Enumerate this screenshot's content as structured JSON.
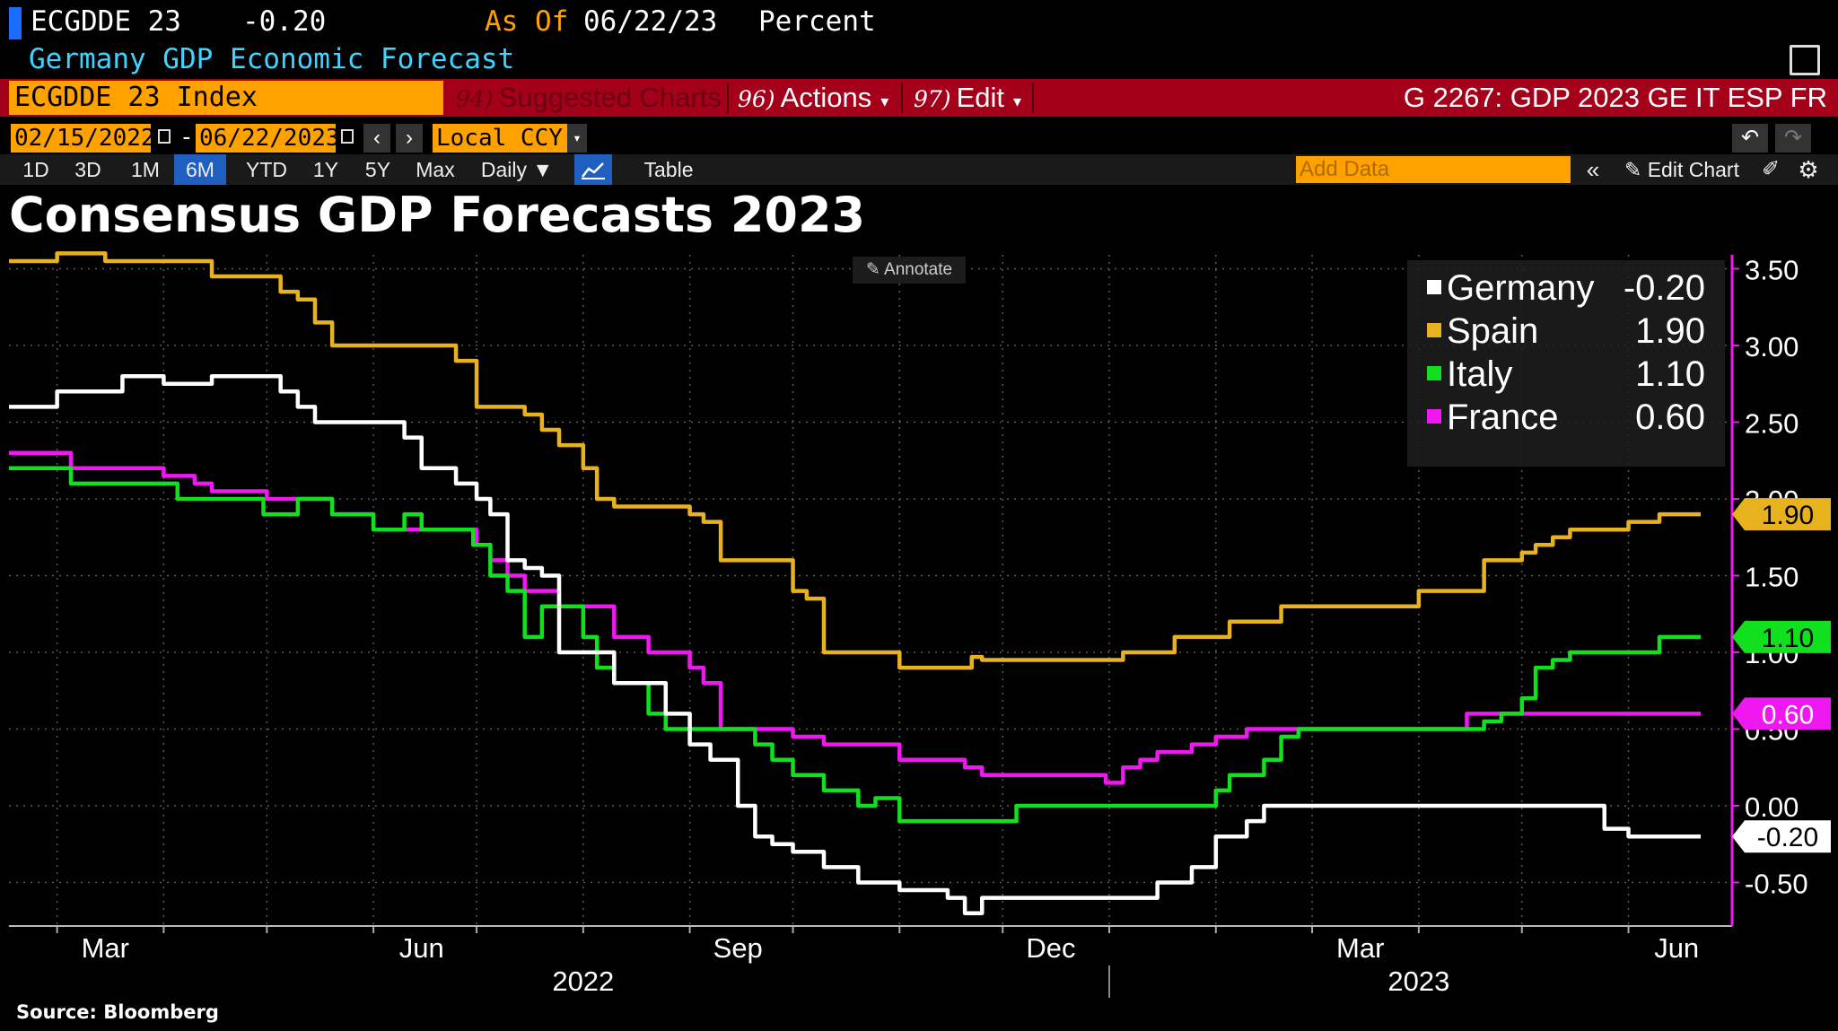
{
  "header": {
    "ticker": "ECGDDE 23",
    "value": "-0.20",
    "as_of_label": "As Of",
    "as_of_date": "06/22/23",
    "unit": "Percent",
    "description": "Germany GDP Economic Forecast"
  },
  "toolbar": {
    "security": "ECGDDE 23 Index",
    "suggested_num": "94)",
    "suggested_label": "Suggested Charts",
    "actions_num": "96)",
    "actions_label": "Actions",
    "edit_num": "97)",
    "edit_label": "Edit",
    "chart_title": "G 2267: GDP 2023 GE IT ESP FR"
  },
  "dates": {
    "start": "02/15/2022",
    "end": "06/22/2023",
    "currency": "Local CCY"
  },
  "ranges": {
    "items": [
      "1D",
      "3D",
      "1M",
      "6M",
      "YTD",
      "1Y",
      "5Y",
      "Max"
    ],
    "active": "6M",
    "frequency": "Daily",
    "table": "Table",
    "add_data_placeholder": "Add Data",
    "edit_chart": "Edit Chart"
  },
  "annotate": "Annotate",
  "source": "Source: Bloomberg",
  "colors": {
    "germany": "#ffffff",
    "spain": "#e8b21e",
    "italy": "#11e01e",
    "france": "#f018f0",
    "accent": "#ffa200",
    "bar": "#a5001a"
  },
  "chart_data": {
    "type": "line",
    "title": "Consensus GDP Forecasts 2023",
    "ylim": [
      -0.75,
      3.6
    ],
    "yticks": [
      "3.50",
      "3.00",
      "2.50",
      "2.00",
      "1.50",
      "1.00",
      "0.50",
      "0.00",
      "-0.50"
    ],
    "month_labels": [
      "Mar",
      "Jun",
      "Sep",
      "Dec",
      "Mar",
      "Jun"
    ],
    "year_labels": [
      "2022",
      "2023"
    ],
    "x_range": [
      "2022-02-15",
      "2023-06-22"
    ],
    "grid": true,
    "legend_position": "top-right",
    "series": [
      {
        "name": "Germany",
        "key": "germany",
        "last": "-0.20",
        "points": [
          [
            "2022-02-15",
            2.6
          ],
          [
            "2022-02-28",
            2.6
          ],
          [
            "2022-03-01",
            2.7
          ],
          [
            "2022-03-10",
            2.7
          ],
          [
            "2022-03-15",
            2.7
          ],
          [
            "2022-03-20",
            2.8
          ],
          [
            "2022-03-30",
            2.8
          ],
          [
            "2022-04-01",
            2.75
          ],
          [
            "2022-04-10",
            2.75
          ],
          [
            "2022-04-15",
            2.8
          ],
          [
            "2022-04-30",
            2.8
          ],
          [
            "2022-05-05",
            2.7
          ],
          [
            "2022-05-10",
            2.6
          ],
          [
            "2022-05-15",
            2.5
          ],
          [
            "2022-06-05",
            2.5
          ],
          [
            "2022-06-10",
            2.4
          ],
          [
            "2022-06-15",
            2.2
          ],
          [
            "2022-06-25",
            2.1
          ],
          [
            "2022-07-01",
            2.0
          ],
          [
            "2022-07-05",
            1.9
          ],
          [
            "2022-07-10",
            1.6
          ],
          [
            "2022-07-15",
            1.55
          ],
          [
            "2022-07-20",
            1.5
          ],
          [
            "2022-07-25",
            1.0
          ],
          [
            "2022-08-05",
            1.0
          ],
          [
            "2022-08-10",
            0.8
          ],
          [
            "2022-08-15",
            0.8
          ],
          [
            "2022-08-25",
            0.6
          ],
          [
            "2022-09-01",
            0.4
          ],
          [
            "2022-09-07",
            0.3
          ],
          [
            "2022-09-12",
            0.3
          ],
          [
            "2022-09-15",
            0.0
          ],
          [
            "2022-09-20",
            -0.2
          ],
          [
            "2022-09-25",
            -0.25
          ],
          [
            "2022-10-01",
            -0.3
          ],
          [
            "2022-10-10",
            -0.4
          ],
          [
            "2022-10-20",
            -0.5
          ],
          [
            "2022-11-01",
            -0.55
          ],
          [
            "2022-11-15",
            -0.6
          ],
          [
            "2022-11-20",
            -0.7
          ],
          [
            "2022-11-25",
            -0.6
          ],
          [
            "2022-12-01",
            -0.6
          ],
          [
            "2023-01-10",
            -0.6
          ],
          [
            "2023-01-15",
            -0.5
          ],
          [
            "2023-01-25",
            -0.4
          ],
          [
            "2023-02-01",
            -0.2
          ],
          [
            "2023-02-05",
            -0.2
          ],
          [
            "2023-02-10",
            -0.1
          ],
          [
            "2023-02-15",
            0.0
          ],
          [
            "2023-05-20",
            0.0
          ],
          [
            "2023-05-25",
            -0.15
          ],
          [
            "2023-06-01",
            -0.2
          ],
          [
            "2023-06-22",
            -0.2
          ]
        ]
      },
      {
        "name": "Spain",
        "key": "spain",
        "last": "1.90",
        "points": [
          [
            "2022-02-15",
            3.55
          ],
          [
            "2022-02-28",
            3.55
          ],
          [
            "2022-03-01",
            3.6
          ],
          [
            "2022-03-10",
            3.6
          ],
          [
            "2022-03-15",
            3.55
          ],
          [
            "2022-04-10",
            3.55
          ],
          [
            "2022-04-15",
            3.45
          ],
          [
            "2022-05-01",
            3.45
          ],
          [
            "2022-05-05",
            3.35
          ],
          [
            "2022-05-10",
            3.3
          ],
          [
            "2022-05-15",
            3.15
          ],
          [
            "2022-05-20",
            3.0
          ],
          [
            "2022-06-20",
            3.0
          ],
          [
            "2022-06-25",
            2.9
          ],
          [
            "2022-07-01",
            2.6
          ],
          [
            "2022-07-10",
            2.6
          ],
          [
            "2022-07-15",
            2.55
          ],
          [
            "2022-07-20",
            2.45
          ],
          [
            "2022-07-25",
            2.35
          ],
          [
            "2022-08-01",
            2.2
          ],
          [
            "2022-08-05",
            2.0
          ],
          [
            "2022-08-10",
            1.95
          ],
          [
            "2022-08-25",
            1.95
          ],
          [
            "2022-09-01",
            1.9
          ],
          [
            "2022-09-05",
            1.85
          ],
          [
            "2022-09-10",
            1.6
          ],
          [
            "2022-09-25",
            1.6
          ],
          [
            "2022-10-01",
            1.4
          ],
          [
            "2022-10-05",
            1.35
          ],
          [
            "2022-10-10",
            1.0
          ],
          [
            "2022-10-30",
            1.0
          ],
          [
            "2022-11-01",
            0.9
          ],
          [
            "2022-11-20",
            0.9
          ],
          [
            "2022-11-22",
            0.97
          ],
          [
            "2022-11-25",
            0.95
          ],
          [
            "2022-12-25",
            0.95
          ],
          [
            "2023-01-05",
            1.0
          ],
          [
            "2023-01-10",
            1.0
          ],
          [
            "2023-01-20",
            1.1
          ],
          [
            "2023-02-01",
            1.1
          ],
          [
            "2023-02-05",
            1.2
          ],
          [
            "2023-02-15",
            1.2
          ],
          [
            "2023-02-20",
            1.3
          ],
          [
            "2023-03-31",
            1.3
          ],
          [
            "2023-04-01",
            1.4
          ],
          [
            "2023-04-15",
            1.4
          ],
          [
            "2023-04-20",
            1.6
          ],
          [
            "2023-05-01",
            1.65
          ],
          [
            "2023-05-05",
            1.7
          ],
          [
            "2023-05-10",
            1.75
          ],
          [
            "2023-05-15",
            1.8
          ],
          [
            "2023-05-25",
            1.8
          ],
          [
            "2023-06-01",
            1.85
          ],
          [
            "2023-06-10",
            1.9
          ],
          [
            "2023-06-22",
            1.9
          ]
        ]
      },
      {
        "name": "Italy",
        "key": "italy",
        "last": "1.10",
        "points": [
          [
            "2022-02-15",
            2.2
          ],
          [
            "2022-03-01",
            2.2
          ],
          [
            "2022-03-05",
            2.1
          ],
          [
            "2022-04-01",
            2.1
          ],
          [
            "2022-04-05",
            2.0
          ],
          [
            "2022-04-25",
            2.0
          ],
          [
            "2022-04-30",
            1.9
          ],
          [
            "2022-05-10",
            2.0
          ],
          [
            "2022-05-15",
            2.0
          ],
          [
            "2022-05-20",
            1.9
          ],
          [
            "2022-06-01",
            1.8
          ],
          [
            "2022-06-10",
            1.9
          ],
          [
            "2022-06-15",
            1.8
          ],
          [
            "2022-06-25",
            1.8
          ],
          [
            "2022-06-30",
            1.7
          ],
          [
            "2022-07-05",
            1.5
          ],
          [
            "2022-07-10",
            1.4
          ],
          [
            "2022-07-15",
            1.1
          ],
          [
            "2022-07-20",
            1.3
          ],
          [
            "2022-07-25",
            1.3
          ],
          [
            "2022-08-01",
            1.1
          ],
          [
            "2022-08-05",
            0.9
          ],
          [
            "2022-08-10",
            0.8
          ],
          [
            "2022-08-20",
            0.6
          ],
          [
            "2022-08-25",
            0.5
          ],
          [
            "2022-09-15",
            0.5
          ],
          [
            "2022-09-20",
            0.4
          ],
          [
            "2022-09-25",
            0.3
          ],
          [
            "2022-10-01",
            0.2
          ],
          [
            "2022-10-10",
            0.1
          ],
          [
            "2022-10-20",
            0.0
          ],
          [
            "2022-10-25",
            0.05
          ],
          [
            "2022-11-01",
            -0.1
          ],
          [
            "2022-11-30",
            -0.1
          ],
          [
            "2022-12-05",
            0.0
          ],
          [
            "2023-01-25",
            0.0
          ],
          [
            "2023-02-01",
            0.1
          ],
          [
            "2023-02-05",
            0.2
          ],
          [
            "2023-02-15",
            0.3
          ],
          [
            "2023-02-20",
            0.45
          ],
          [
            "2023-02-25",
            0.5
          ],
          [
            "2023-04-15",
            0.5
          ],
          [
            "2023-04-20",
            0.55
          ],
          [
            "2023-04-25",
            0.6
          ],
          [
            "2023-05-01",
            0.7
          ],
          [
            "2023-05-05",
            0.9
          ],
          [
            "2023-05-10",
            0.95
          ],
          [
            "2023-05-15",
            1.0
          ],
          [
            "2023-06-01",
            1.0
          ],
          [
            "2023-06-10",
            1.1
          ],
          [
            "2023-06-22",
            1.1
          ]
        ]
      },
      {
        "name": "France",
        "key": "france",
        "last": "0.60",
        "points": [
          [
            "2022-02-15",
            2.3
          ],
          [
            "2022-03-01",
            2.3
          ],
          [
            "2022-03-05",
            2.2
          ],
          [
            "2022-03-25",
            2.2
          ],
          [
            "2022-04-01",
            2.15
          ],
          [
            "2022-04-10",
            2.1
          ],
          [
            "2022-04-15",
            2.05
          ],
          [
            "2022-05-01",
            2.0
          ],
          [
            "2022-05-15",
            2.0
          ],
          [
            "2022-05-20",
            1.9
          ],
          [
            "2022-06-01",
            1.8
          ],
          [
            "2022-06-25",
            1.8
          ],
          [
            "2022-07-01",
            1.7
          ],
          [
            "2022-07-05",
            1.6
          ],
          [
            "2022-07-10",
            1.5
          ],
          [
            "2022-07-15",
            1.4
          ],
          [
            "2022-07-20",
            1.4
          ],
          [
            "2022-07-25",
            1.3
          ],
          [
            "2022-08-05",
            1.3
          ],
          [
            "2022-08-10",
            1.1
          ],
          [
            "2022-08-20",
            1.0
          ],
          [
            "2022-09-01",
            0.9
          ],
          [
            "2022-09-05",
            0.8
          ],
          [
            "2022-09-10",
            0.5
          ],
          [
            "2022-09-20",
            0.5
          ],
          [
            "2022-10-01",
            0.45
          ],
          [
            "2022-10-10",
            0.4
          ],
          [
            "2022-10-20",
            0.4
          ],
          [
            "2022-11-01",
            0.3
          ],
          [
            "2022-11-15",
            0.3
          ],
          [
            "2022-11-20",
            0.25
          ],
          [
            "2022-11-25",
            0.2
          ],
          [
            "2022-12-25",
            0.2
          ],
          [
            "2022-12-31",
            0.15
          ],
          [
            "2023-01-05",
            0.25
          ],
          [
            "2023-01-10",
            0.3
          ],
          [
            "2023-01-15",
            0.35
          ],
          [
            "2023-01-25",
            0.4
          ],
          [
            "2023-02-01",
            0.45
          ],
          [
            "2023-02-10",
            0.5
          ],
          [
            "2023-04-10",
            0.5
          ],
          [
            "2023-04-15",
            0.6
          ],
          [
            "2023-06-22",
            0.6
          ]
        ]
      }
    ]
  }
}
